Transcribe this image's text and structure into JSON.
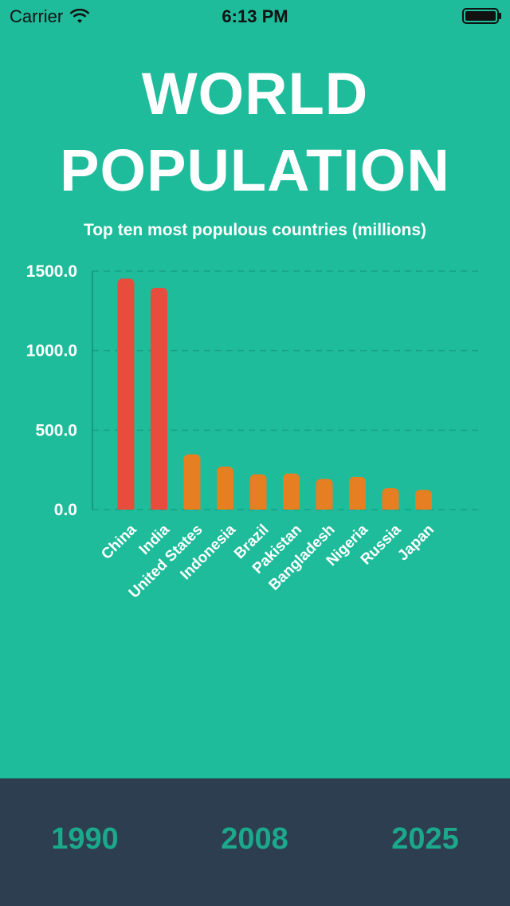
{
  "status_bar": {
    "carrier": "Carrier",
    "time": "6:13 PM"
  },
  "title": {
    "line1": "WORLD",
    "line2": "POPULATION"
  },
  "subtitle": "Top ten most populous countries (millions)",
  "colors": {
    "background": "#1ebc9b",
    "top_bar": "#e74c3c",
    "other_bar": "#e67e22",
    "footer": "#2d3e50",
    "year_text": "#1ca88b"
  },
  "chart_data": {
    "type": "bar",
    "title": "Top ten most populous countries (millions)",
    "categories": [
      "China",
      "India",
      "United States",
      "Indonesia",
      "Brazil",
      "Pakistan",
      "Bangladesh",
      "Nigeria",
      "Russia",
      "Japan"
    ],
    "values": [
      1453,
      1395,
      348,
      270,
      222,
      227,
      193,
      206,
      135,
      124
    ],
    "ylim": [
      0,
      1500
    ],
    "yticks": [
      "0.0",
      "500.0",
      "1000.0",
      "1500.0"
    ],
    "grid": true,
    "highlight": [
      "China",
      "India"
    ]
  },
  "years": [
    "1990",
    "2008",
    "2025"
  ]
}
